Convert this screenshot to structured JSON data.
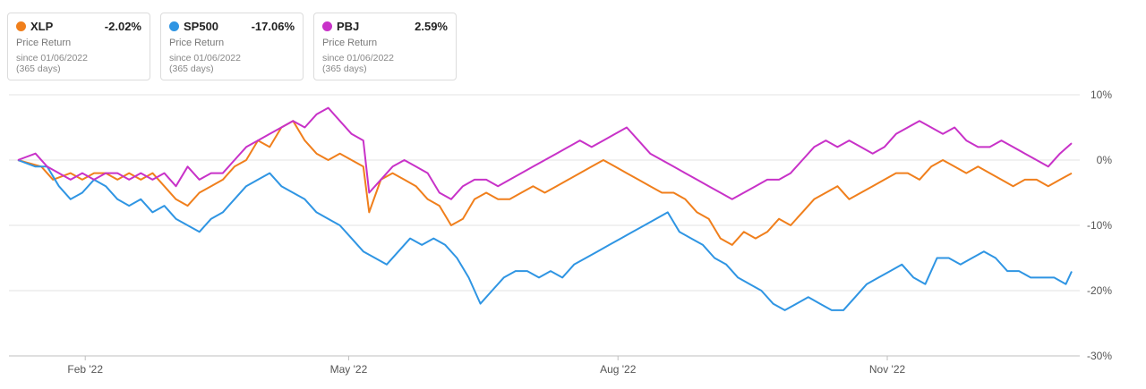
{
  "legend": [
    {
      "ticker": "XLP",
      "change": "-2.02%",
      "metric": "Price Return",
      "since": "since 01/06/2022",
      "days": "(365 days)",
      "color": "#f07f1c"
    },
    {
      "ticker": "SP500",
      "change": "-17.06%",
      "metric": "Price Return",
      "since": "since 01/06/2022",
      "days": "(365 days)",
      "color": "#2f95e3"
    },
    {
      "ticker": "PBJ",
      "change": "2.59%",
      "metric": "Price Return",
      "since": "since 01/06/2022",
      "days": "(365 days)",
      "color": "#c832c8"
    }
  ],
  "chart_data": {
    "type": "line",
    "x_labels": [
      "Feb '22",
      "May '22",
      "Aug '22",
      "Nov '22"
    ],
    "x_label_positions": [
      23,
      113,
      205,
      297
    ],
    "x_range": [
      0,
      360
    ],
    "y_ticks": [
      10,
      0,
      -10,
      -20,
      -30
    ],
    "y_tick_labels": [
      "10%",
      "0%",
      "-10%",
      "-20%",
      "-30%"
    ],
    "ylim": [
      -30,
      10
    ],
    "grid": true,
    "series": [
      {
        "name": "XLP",
        "color": "#f07f1c",
        "x": [
          0,
          8,
          12,
          18,
          22,
          26,
          30,
          34,
          38,
          42,
          46,
          50,
          54,
          58,
          62,
          66,
          70,
          74,
          78,
          82,
          86,
          90,
          94,
          98,
          102,
          106,
          110,
          114,
          118,
          120,
          124,
          128,
          132,
          136,
          140,
          144,
          148,
          152,
          156,
          160,
          164,
          168,
          172,
          176,
          180,
          184,
          188,
          192,
          196,
          200,
          204,
          208,
          212,
          216,
          220,
          224,
          228,
          232,
          236,
          240,
          244,
          248,
          252,
          256,
          260,
          264,
          268,
          272,
          276,
          280,
          284,
          288,
          292,
          296,
          300,
          304,
          308,
          312,
          316,
          320,
          324,
          328,
          332,
          336,
          340,
          344,
          348,
          352,
          356,
          360
        ],
        "y": [
          0,
          -1,
          -3,
          -2,
          -3,
          -2,
          -2,
          -3,
          -2,
          -3,
          -2,
          -4,
          -6,
          -7,
          -5,
          -4,
          -3,
          -1,
          0,
          3,
          2,
          5,
          6,
          3,
          1,
          0,
          1,
          0,
          -1,
          -8,
          -3,
          -2,
          -3,
          -4,
          -6,
          -7,
          -10,
          -9,
          -6,
          -5,
          -6,
          -6,
          -5,
          -4,
          -5,
          -4,
          -3,
          -2,
          -1,
          0,
          -1,
          -2,
          -3,
          -4,
          -5,
          -5,
          -6,
          -8,
          -9,
          -12,
          -13,
          -11,
          -12,
          -11,
          -9,
          -10,
          -8,
          -6,
          -5,
          -4,
          -6,
          -5,
          -4,
          -3,
          -2,
          -2,
          -3,
          -1,
          0,
          -1,
          -2,
          -1,
          -2,
          -3,
          -4,
          -3,
          -3,
          -4,
          -3,
          -2.02
        ]
      },
      {
        "name": "SP500",
        "color": "#2f95e3",
        "x": [
          0,
          6,
          10,
          14,
          18,
          22,
          26,
          30,
          34,
          38,
          42,
          46,
          50,
          54,
          58,
          62,
          66,
          70,
          74,
          78,
          82,
          86,
          90,
          94,
          98,
          102,
          106,
          110,
          114,
          118,
          122,
          126,
          130,
          134,
          138,
          142,
          146,
          150,
          154,
          158,
          162,
          166,
          170,
          174,
          178,
          182,
          186,
          190,
          194,
          198,
          202,
          206,
          210,
          214,
          218,
          222,
          226,
          230,
          234,
          238,
          242,
          246,
          250,
          254,
          258,
          262,
          266,
          270,
          274,
          278,
          282,
          286,
          290,
          294,
          298,
          302,
          306,
          310,
          314,
          318,
          322,
          326,
          330,
          334,
          338,
          342,
          346,
          350,
          354,
          358,
          360
        ],
        "y": [
          0,
          -1,
          -1,
          -4,
          -6,
          -5,
          -3,
          -4,
          -6,
          -7,
          -6,
          -8,
          -7,
          -9,
          -10,
          -11,
          -9,
          -8,
          -6,
          -4,
          -3,
          -2,
          -4,
          -5,
          -6,
          -8,
          -9,
          -10,
          -12,
          -14,
          -15,
          -16,
          -14,
          -12,
          -13,
          -12,
          -13,
          -15,
          -18,
          -22,
          -20,
          -18,
          -17,
          -17,
          -18,
          -17,
          -18,
          -16,
          -15,
          -14,
          -13,
          -12,
          -11,
          -10,
          -9,
          -8,
          -11,
          -12,
          -13,
          -15,
          -16,
          -18,
          -19,
          -20,
          -22,
          -23,
          -22,
          -21,
          -22,
          -23,
          -23,
          -21,
          -19,
          -18,
          -17,
          -16,
          -18,
          -19,
          -15,
          -15,
          -16,
          -15,
          -14,
          -15,
          -17,
          -17,
          -18,
          -18,
          -18,
          -19,
          -17.06
        ]
      },
      {
        "name": "PBJ",
        "color": "#c832c8",
        "x": [
          0,
          6,
          10,
          14,
          18,
          22,
          26,
          30,
          34,
          38,
          42,
          46,
          50,
          54,
          58,
          62,
          66,
          70,
          74,
          78,
          82,
          86,
          90,
          94,
          98,
          102,
          106,
          110,
          114,
          118,
          120,
          124,
          128,
          132,
          136,
          140,
          144,
          148,
          152,
          156,
          160,
          164,
          168,
          172,
          176,
          180,
          184,
          188,
          192,
          196,
          200,
          204,
          208,
          212,
          216,
          220,
          224,
          228,
          232,
          236,
          240,
          244,
          248,
          252,
          256,
          260,
          264,
          268,
          272,
          276,
          280,
          284,
          288,
          292,
          296,
          300,
          304,
          308,
          312,
          316,
          320,
          324,
          328,
          332,
          336,
          340,
          344,
          348,
          352,
          356,
          360
        ],
        "y": [
          0,
          1,
          -1,
          -2,
          -3,
          -2,
          -3,
          -2,
          -2,
          -3,
          -2,
          -3,
          -2,
          -4,
          -1,
          -3,
          -2,
          -2,
          0,
          2,
          3,
          4,
          5,
          6,
          5,
          7,
          8,
          6,
          4,
          3,
          -5,
          -3,
          -1,
          0,
          -1,
          -2,
          -5,
          -6,
          -4,
          -3,
          -3,
          -4,
          -3,
          -2,
          -1,
          0,
          1,
          2,
          3,
          2,
          3,
          4,
          5,
          3,
          1,
          0,
          -1,
          -2,
          -3,
          -4,
          -5,
          -6,
          -5,
          -4,
          -3,
          -3,
          -2,
          0,
          2,
          3,
          2,
          3,
          2,
          1,
          2,
          4,
          5,
          6,
          5,
          4,
          5,
          3,
          2,
          2,
          3,
          2,
          1,
          0,
          -1,
          1,
          2.59
        ]
      }
    ]
  }
}
